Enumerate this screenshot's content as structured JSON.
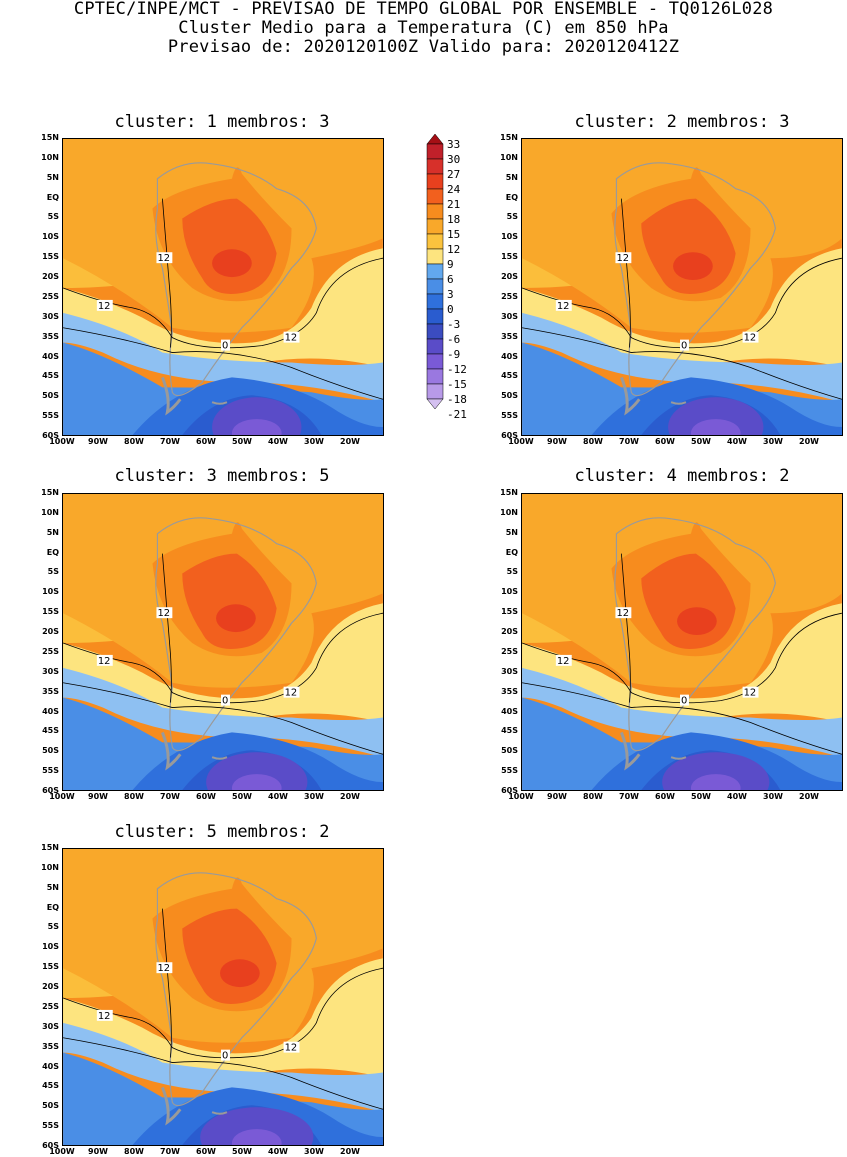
{
  "header": {
    "line1": "CPTEC/INPE/MCT - PREVISAO DE TEMPO GLOBAL POR ENSEMBLE - TQ0126L028",
    "line2": "Cluster Medio para a Temperatura (C) em 850 hPa",
    "line3": "Previsao de: 2020120100Z   Valido para: 2020120412Z"
  },
  "panels": [
    {
      "title": "cluster: 1  membros: 3"
    },
    {
      "title": "cluster: 2  membros: 3"
    },
    {
      "title": "cluster: 3  membros: 5"
    },
    {
      "title": "cluster: 4  membros: 2"
    },
    {
      "title": "cluster: 5  membros: 2"
    }
  ],
  "lat_labels": [
    "15N",
    "10N",
    "5N",
    "EQ",
    "5S",
    "10S",
    "15S",
    "20S",
    "25S",
    "30S",
    "35S",
    "40S",
    "45S",
    "50S",
    "55S",
    "60S"
  ],
  "lon_labels": [
    "100W",
    "90W",
    "80W",
    "70W",
    "60W",
    "50W",
    "40W",
    "30W",
    "20W"
  ],
  "contour_labels": {
    "twelve": "12",
    "zero": "0"
  },
  "colorbar": {
    "labels": [
      "33",
      "30",
      "27",
      "24",
      "21",
      "18",
      "15",
      "12",
      "9",
      "6",
      "3",
      "0",
      "-3",
      "-6",
      "-9",
      "-12",
      "-15",
      "-18",
      "-21"
    ],
    "colors": [
      "#a50f15",
      "#c0202a",
      "#d7302a",
      "#e8401e",
      "#f2601e",
      "#f78c1e",
      "#f9a82a",
      "#fbc33e",
      "#fde47f",
      "#62a8ee",
      "#4a8ee6",
      "#2f70dc",
      "#2a5ccf",
      "#3b4cc0",
      "#5a4cc8",
      "#7a5ad6",
      "#9a78e0",
      "#b89ae8",
      "#d4c0f0"
    ]
  }
}
